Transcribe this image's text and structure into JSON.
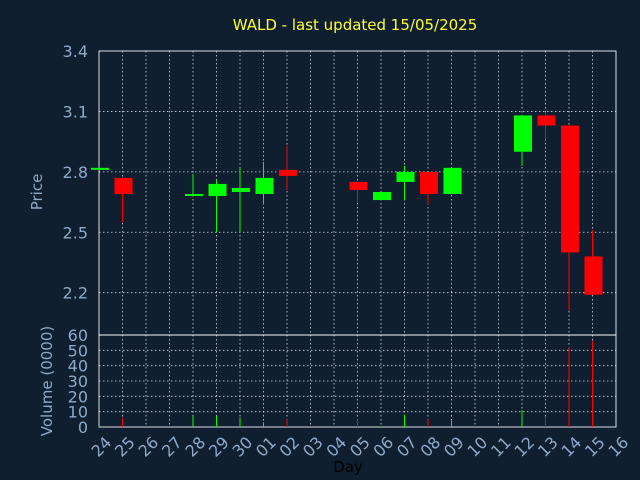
{
  "colors": {
    "background": "#0f1f30",
    "grid": "#ffffff",
    "up": "#00ff00",
    "down": "#ff0000",
    "title": "#ffff33",
    "axis_text": "#8fa9c8"
  },
  "chart_data": [
    {
      "type": "candlestick",
      "title": "WALD - last updated 15/05/2025",
      "ylabel": "Price",
      "xlabel": "",
      "ylim": [
        1.99,
        3.4
      ],
      "yticks": [
        "2.2",
        "2.5",
        "2.8",
        "3.1",
        "3.4"
      ],
      "grid": true,
      "x": [
        "24",
        "25",
        "26",
        "27",
        "28",
        "29",
        "30",
        "01",
        "02",
        "03",
        "04",
        "05",
        "06",
        "07",
        "08",
        "09",
        "10",
        "11",
        "12",
        "13",
        "14",
        "15",
        "16"
      ],
      "candles": [
        {
          "day": "24",
          "open": 2.81,
          "close": 2.82,
          "high": 2.82,
          "low": 2.81
        },
        {
          "day": "25",
          "open": 2.77,
          "close": 2.69,
          "high": 2.77,
          "low": 2.55
        },
        {
          "day": "28",
          "open": 2.68,
          "close": 2.69,
          "high": 2.79,
          "low": 2.68
        },
        {
          "day": "29",
          "open": 2.68,
          "close": 2.74,
          "high": 2.76,
          "low": 2.5
        },
        {
          "day": "30",
          "open": 2.7,
          "close": 2.72,
          "high": 2.82,
          "low": 2.5
        },
        {
          "day": "01",
          "open": 2.69,
          "close": 2.77,
          "high": 2.85,
          "low": 2.64
        },
        {
          "day": "02",
          "open": 2.81,
          "close": 2.78,
          "high": 2.93,
          "low": 2.71
        },
        {
          "day": "05",
          "open": 2.75,
          "close": 2.71,
          "high": 2.75,
          "low": 2.65
        },
        {
          "day": "06",
          "open": 2.66,
          "close": 2.7,
          "high": 2.7,
          "low": 2.66
        },
        {
          "day": "07",
          "open": 2.75,
          "close": 2.8,
          "high": 2.83,
          "low": 2.66
        },
        {
          "day": "08",
          "open": 2.8,
          "close": 2.69,
          "high": 2.8,
          "low": 2.64
        },
        {
          "day": "09",
          "open": 2.69,
          "close": 2.82,
          "high": 2.82,
          "low": 2.69
        },
        {
          "day": "12",
          "open": 2.9,
          "close": 3.08,
          "high": 3.08,
          "low": 2.83
        },
        {
          "day": "13",
          "open": 3.08,
          "close": 3.03,
          "high": 3.09,
          "low": 2.96
        },
        {
          "day": "14",
          "open": 3.03,
          "close": 2.4,
          "high": 3.03,
          "low": 2.11
        },
        {
          "day": "15",
          "open": 2.38,
          "close": 2.19,
          "high": 2.51,
          "low": 2.19
        }
      ]
    },
    {
      "type": "bar",
      "ylabel": "Volume (0000)",
      "xlabel": "Day",
      "ylim": [
        0,
        60
      ],
      "yticks": [
        "0",
        "10",
        "20",
        "30",
        "40",
        "50",
        "60"
      ],
      "grid": true,
      "categories": [
        "24",
        "25",
        "28",
        "29",
        "30",
        "01",
        "02",
        "05",
        "06",
        "07",
        "08",
        "09",
        "12",
        "13",
        "14",
        "15"
      ],
      "values": [
        0.5,
        6,
        7,
        7,
        6,
        3,
        5,
        5,
        0.5,
        8,
        5,
        4,
        11,
        7,
        52,
        56
      ]
    }
  ]
}
